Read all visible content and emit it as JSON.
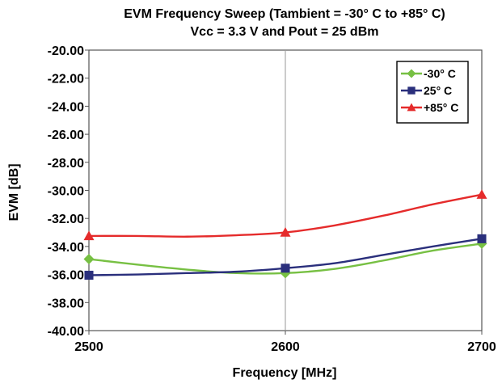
{
  "chart_data": {
    "type": "line",
    "title": "EVM Frequency Sweep (Tambient = -30° C to +85° C)",
    "subtitle": "Vcc = 3.3 V and Pout = 25 dBm",
    "xlabel": "Frequency [MHz]",
    "ylabel": "EVM [dB]",
    "xlim": [
      2500,
      2700
    ],
    "ylim": [
      -40,
      -20
    ],
    "x_ticks": [
      2500,
      2600,
      2700
    ],
    "x_tick_labels": [
      "2500",
      "2600",
      "2700"
    ],
    "y_ticks": [
      -20,
      -22,
      -24,
      -26,
      -28,
      -30,
      -32,
      -34,
      -36,
      -38,
      -40
    ],
    "y_tick_labels": [
      "-20.00",
      "-22.00",
      "-24.00",
      "-26.00",
      "-28.00",
      "-30.00",
      "-32.00",
      "-34.00",
      "-36.00",
      "-38.00",
      "-40.00"
    ],
    "grid": "vertical",
    "legend_position": "top-right",
    "series": [
      {
        "name": "-30° C",
        "color": "#77c043",
        "marker": "diamond",
        "x": [
          2500,
          2525,
          2550,
          2575,
          2600,
          2625,
          2650,
          2675,
          2700
        ],
        "y": [
          -34.9,
          -35.3,
          -35.65,
          -35.9,
          -35.9,
          -35.6,
          -35.0,
          -34.3,
          -33.8
        ],
        "marker_x": [
          2500,
          2600,
          2700
        ]
      },
      {
        "name": "25° C",
        "color": "#2a2f7c",
        "marker": "square",
        "x": [
          2500,
          2525,
          2550,
          2575,
          2600,
          2625,
          2650,
          2675,
          2700
        ],
        "y": [
          -36.05,
          -36.0,
          -35.9,
          -35.8,
          -35.55,
          -35.2,
          -34.6,
          -34.0,
          -33.45
        ],
        "marker_x": [
          2500,
          2600,
          2700
        ]
      },
      {
        "name": "+85° C",
        "color": "#e52b2b",
        "marker": "triangle",
        "x": [
          2500,
          2525,
          2550,
          2575,
          2600,
          2625,
          2650,
          2675,
          2700
        ],
        "y": [
          -33.25,
          -33.25,
          -33.3,
          -33.2,
          -33.0,
          -32.5,
          -31.8,
          -31.0,
          -30.3
        ],
        "marker_x": [
          2500,
          2600,
          2700
        ]
      }
    ]
  }
}
